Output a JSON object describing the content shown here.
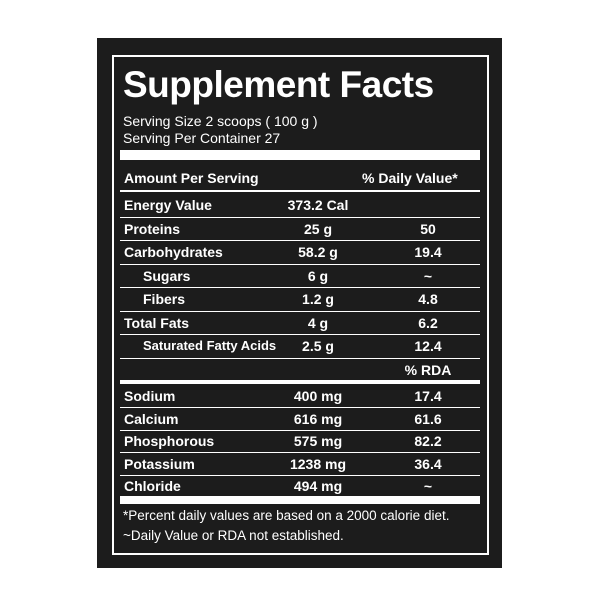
{
  "header": {
    "title": "Supplement Facts",
    "serving_size": "Serving Size 2 scoops ( 100 g )",
    "servings_per_container": "Serving Per Container 27"
  },
  "table": {
    "header": [
      "Amount Per Serving",
      "% Daily Value*"
    ],
    "rows": [
      [
        "Energy Value",
        "373.2 Cal"
      ],
      [
        "Proteins",
        "25 g",
        "50"
      ],
      [
        "Carbohydrates",
        "58.2 g",
        "19.4"
      ],
      [
        "Sugars",
        "6 g",
        "~"
      ],
      [
        "Fibers",
        "1.2 g",
        "4.8"
      ],
      [
        "Total Fats",
        "4 g",
        "6.2"
      ],
      [
        "Saturated Fatty Acids",
        "2.5 g",
        "12.4"
      ]
    ]
  },
  "minerals": {
    "header": "% RDA",
    "rows": [
      [
        "Sodium",
        "400 mg",
        "17.4"
      ],
      [
        "Calcium",
        "616 mg",
        "61.6"
      ],
      [
        "Phosphorous",
        "575 mg",
        "82.2"
      ],
      [
        "Potassium",
        "1238 mg",
        "36.4"
      ],
      [
        "Chloride",
        "494 mg",
        "~"
      ]
    ]
  },
  "footnotes": [
    "*Percent daily values are based on a 2000 calorie diet.",
    "~Daily Value or RDA not established."
  ]
}
